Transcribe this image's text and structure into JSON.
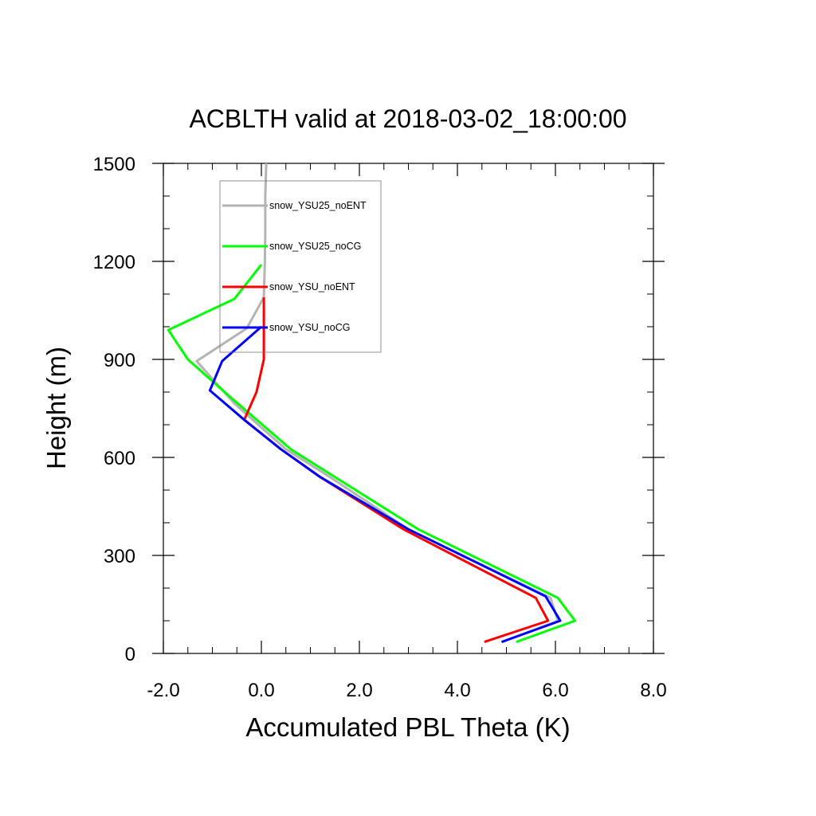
{
  "chart_data": {
    "type": "line",
    "title": "ACBLTH valid at 2018-03-02_18:00:00",
    "xlabel": "Accumulated PBL Theta (K)",
    "ylabel": "Height (m)",
    "xlim": [
      -2.0,
      8.0
    ],
    "ylim": [
      0,
      1500
    ],
    "xticks": [
      -2.0,
      0.0,
      2.0,
      4.0,
      6.0,
      8.0
    ],
    "xtick_labels": [
      "-2.0",
      "0.0",
      "2.0",
      "4.0",
      "6.0",
      "8.0"
    ],
    "yticks": [
      0,
      300,
      600,
      900,
      1200,
      1500
    ],
    "ytick_labels": [
      "0",
      "300",
      "600",
      "900",
      "1200",
      "1500"
    ],
    "grid": false,
    "legend_position": "top-left",
    "series": [
      {
        "name": "snow_YSU25_noENT",
        "color": "#b4b4b4",
        "points": [
          [
            4.92,
            35
          ],
          [
            6.05,
            100
          ],
          [
            5.9,
            170
          ],
          [
            3.0,
            380
          ],
          [
            1.4,
            540
          ],
          [
            0.5,
            625
          ],
          [
            -0.55,
            765
          ],
          [
            -1.32,
            895
          ],
          [
            -0.3,
            995
          ],
          [
            0.05,
            1090
          ],
          [
            0.07,
            1190
          ],
          [
            0.08,
            1290
          ],
          [
            0.08,
            1400
          ],
          [
            0.1,
            1500
          ]
        ]
      },
      {
        "name": "snow_YSU25_noCG",
        "color": "#00ff00",
        "points": [
          [
            5.2,
            35
          ],
          [
            6.4,
            100
          ],
          [
            6.05,
            170
          ],
          [
            3.2,
            380
          ],
          [
            1.5,
            540
          ],
          [
            0.6,
            625
          ],
          [
            -0.75,
            800
          ],
          [
            -1.5,
            900
          ],
          [
            -1.9,
            990
          ],
          [
            -0.55,
            1085
          ],
          [
            0.0,
            1190
          ]
        ]
      },
      {
        "name": "snow_YSU_noENT",
        "color": "#ff0000",
        "points": [
          [
            4.55,
            35
          ],
          [
            5.85,
            100
          ],
          [
            5.6,
            170
          ],
          [
            2.9,
            380
          ],
          [
            1.2,
            540
          ],
          [
            0.4,
            625
          ],
          [
            -0.35,
            715
          ],
          [
            -0.1,
            800
          ],
          [
            0.05,
            900
          ],
          [
            0.05,
            1000
          ],
          [
            0.05,
            1090
          ]
        ]
      },
      {
        "name": "snow_YSU_noCG",
        "color": "#0000ff",
        "points": [
          [
            4.9,
            35
          ],
          [
            6.1,
            100
          ],
          [
            5.8,
            175
          ],
          [
            3.0,
            380
          ],
          [
            1.2,
            540
          ],
          [
            0.4,
            625
          ],
          [
            -0.35,
            715
          ],
          [
            -1.05,
            805
          ],
          [
            -0.8,
            895
          ],
          [
            0.0,
            1000
          ]
        ]
      }
    ]
  }
}
